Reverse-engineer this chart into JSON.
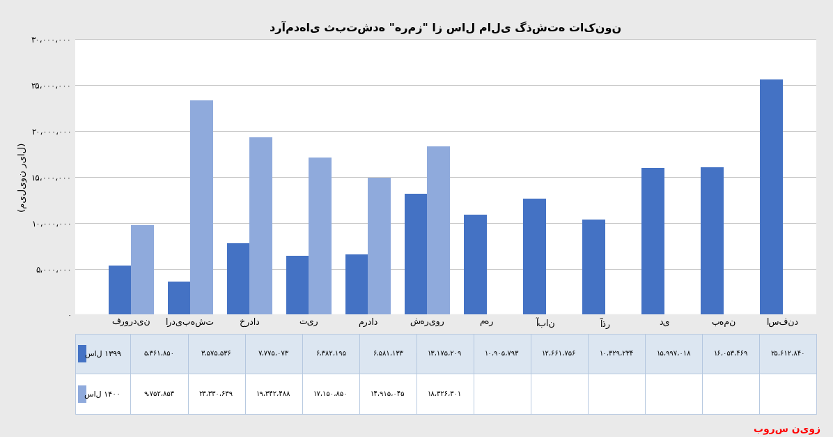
{
  "title": "درآمدهای ثبتشده \"هرمز\" از سال مالی گذشته تاکنون",
  "months": [
    "فروردین",
    "اردیبهشت",
    "خرداد",
    "تیر",
    "مرداد",
    "شهریور",
    "مهر",
    "آبان",
    "آذر",
    "دی",
    "بهمن",
    "اسفند"
  ],
  "sal1399": [
    5361850,
    3575536,
    7775073,
    6382195,
    6581133,
    13175209,
    10905793,
    12661756,
    10329234,
    15997018,
    16053469,
    25612840
  ],
  "sal1400": [
    9752853,
    23330639,
    19342488,
    17150850,
    14915045,
    18326301,
    null,
    null,
    null,
    null,
    null,
    null
  ],
  "color_1399": "#4472c4",
  "color_1400": "#8faadc",
  "ylabel": "(میلیون ریال)",
  "ylim_max": 30000000,
  "ytick_vals": [
    0,
    5000000,
    10000000,
    15000000,
    20000000,
    25000000,
    30000000
  ],
  "ytick_labels": [
    "۰",
    "۵،۰۰۰،۰۰۰",
    "۱۰،۰۰۰،۰۰۰",
    "۱۵،۰۰۰،۰۰۰",
    "۲۰،۰۰۰،۰۰۰",
    "۲۵،۰۰۰،۰۰۰",
    "۳۰،۰۰۰،۰۰۰"
  ],
  "legend_1399": "سال ۱۳۹۹",
  "legend_1400": "سال ۱۴۰۰",
  "bg_color": "#eaeaea",
  "plot_bg_color": "#ffffff",
  "grid_color": "#c8c8c8",
  "watermark_text": "بورس نیوز",
  "table_row1_label": "سال ۱۳۹۹",
  "table_row2_label": "سال ۱۴۰۰",
  "table_row1_vals": [
    "۵،۳۶۱،۸۵۰",
    "۳،۵۷۵،۵۳۶",
    "۷،۷۷۵،۰۷۳",
    "۶،۳۸۲،۱۹۵",
    "۶،۵۸۱،۱۳۳",
    "۱۳،۱۷۵،۲۰۹",
    "۱۰،۹۰۵،۷۹۳",
    "۱۲،۶۶۱،۷۵۶",
    "۱۰،۳۲۹،۲۳۴",
    "۱۵،۹۹۷،۰۱۸",
    "۱۶،۰۵۳،۴۶۹",
    "۲۵،۶۱۲،۸۴۰"
  ],
  "table_row2_vals": [
    "۹،۷۵۲،۸۵۳",
    "۲۳،۳۳۰،۶۳۹",
    "۱۹،۳۴۲،۴۸۸",
    "۱۷،۱۵۰،۸۵۰",
    "۱۴،۹۱۵،۰۴۵",
    "۱۸،۳۲۶،۳۰۱",
    "",
    "",
    "",
    "",
    "",
    ""
  ],
  "bar_width": 0.38
}
